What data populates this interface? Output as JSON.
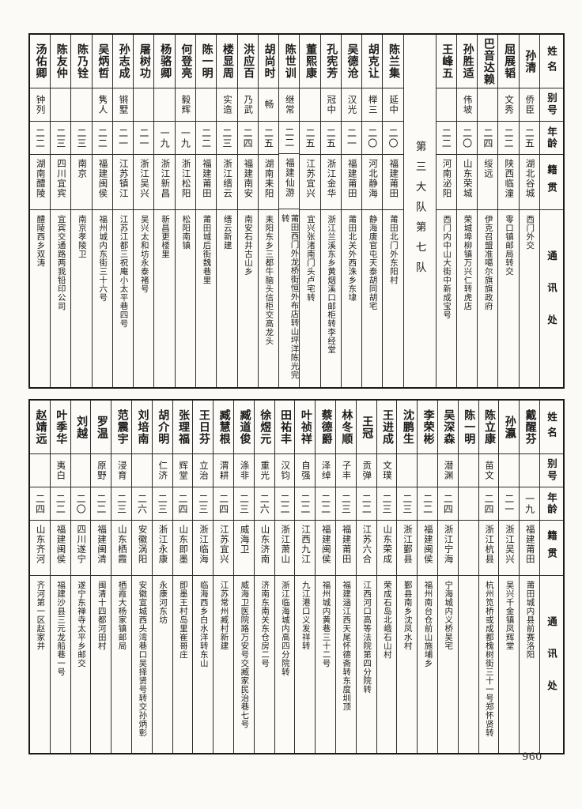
{
  "page": {
    "number": "960"
  },
  "header_labels": {
    "name": "姓名",
    "alias": "别号",
    "age": "年龄",
    "native": "籍贯",
    "contact": "通讯处"
  },
  "top_table": {
    "divider": "第三大队第七队",
    "people_right": [
      {
        "name": "孙清",
        "alias": "侨臣",
        "age": "二五",
        "native": "湖北谷城",
        "address": "西门外交"
      },
      {
        "name": "屈展韬",
        "alias": "文秀",
        "age": "二二",
        "native": "陕西临潼",
        "address": "零口镇邮局转交"
      },
      {
        "name": "巴音达赖",
        "alias": "",
        "age": "二四",
        "native": "绥远",
        "address": "伊克召盟准噶尔旗旗政府"
      },
      {
        "name": "孙胜适",
        "alias": "伟坡",
        "age": "二〇",
        "native": "山东荣城",
        "address": "荣城埠柳镇万兴仁转虎店"
      },
      {
        "name": "王峰五",
        "alias": "",
        "age": "二二",
        "native": "河南泌阳",
        "address": "西门内中山大街中新成宝号"
      }
    ],
    "people_left": [
      {
        "name": "陈兰集",
        "alias": "延中",
        "age": "二〇",
        "native": "福建莆田",
        "address": "莆田北门外东阳村"
      },
      {
        "name": "胡克让",
        "alias": "榉三",
        "age": "二〇",
        "native": "河北静海",
        "address": "静海唐官屯天泰胡同胡宅"
      },
      {
        "name": "吴德沧",
        "alias": "汉光",
        "age": "二一",
        "native": "福建莆田",
        "address": "莆田北关外西洙乡东埭"
      },
      {
        "name": "孔宪芳",
        "alias": "冠中",
        "age": "二五",
        "native": "浙江金华",
        "address": "浙江兰溪东乡黄烟溪口邮柜转李经堂"
      },
      {
        "name": "董熙康",
        "alias": "",
        "age": "二五",
        "native": "江苏宜兴",
        "address": "宜兴张渚南门头卢宅转"
      },
      {
        "name": "陈世训",
        "alias": "继常",
        "age": "二二",
        "native": "福建仙游",
        "address": "莆田西门外龙桥街恒外布店转山坪洋陈光完转"
      },
      {
        "name": "胡尚时",
        "alias": "畅",
        "age": "二五",
        "native": "湖南耒阳",
        "address": "耒阳东乡三都牛脑头信柜交高龙头"
      },
      {
        "name": "洪应百",
        "alias": "乃武",
        "age": "二四",
        "native": "福建南安",
        "address": "南安石井古山乡"
      },
      {
        "name": "楼显周",
        "alias": "实造",
        "age": "二三",
        "native": "浙江缙云",
        "address": "缙云新建"
      },
      {
        "name": "陈一明",
        "alias": "",
        "age": "二二",
        "native": "福建莆田",
        "address": "莆田城后街魏巷里"
      },
      {
        "name": "何登亮",
        "alias": "毅辉",
        "age": "一九",
        "native": "浙江松阳",
        "address": "松阳南镇"
      },
      {
        "name": "杨骆卿",
        "alias": "",
        "age": "一九",
        "native": "浙江新昌",
        "address": "新昌更楼里"
      },
      {
        "name": "屠树功",
        "alias": "",
        "age": "二一",
        "native": "浙江吴兴",
        "address": "吴兴太和坊永泰褚号"
      },
      {
        "name": "孙志成",
        "alias": "锵墅",
        "age": "二一",
        "native": "江苏镇江",
        "address": "江苏江都三祝庵小太平巷四号"
      },
      {
        "name": "吴炳哲",
        "alias": "隽人",
        "age": "二二",
        "native": "福建闽侯",
        "address": "福州城内东街三十六号"
      },
      {
        "name": "陈乃铨",
        "alias": "",
        "age": "二三",
        "native": "南京",
        "address": "南京孝陵卫"
      },
      {
        "name": "陈友仲",
        "alias": "",
        "age": "二三",
        "native": "四川宜宾",
        "address": "宜宾交通路两我铅印公司"
      },
      {
        "name": "汤佑卿",
        "alias": "钟列",
        "age": "二二",
        "native": "湖南醴陵",
        "address": "醴陵西乡双涛"
      }
    ]
  },
  "bottom_table": {
    "people": [
      {
        "name": "戴醒芬",
        "alias": "",
        "age": "一九",
        "native": "福建莆田",
        "address": "莆田城内县前赛洛阳"
      },
      {
        "name": "孙瀛",
        "alias": "",
        "age": "二一",
        "native": "浙江吴兴",
        "address": "吴兴千金镇凤辉堂"
      },
      {
        "name": "陈立康",
        "alias": "苗文",
        "age": "二四",
        "native": "浙江杭县",
        "address": "杭州笕桥或成都槐树街三十一号郑怀贤转"
      },
      {
        "name": "陈一明",
        "alias": "",
        "age": "",
        "native": "",
        "address": ""
      },
      {
        "name": "吴深森",
        "alias": "潜渊",
        "age": "二四",
        "native": "浙江宁海",
        "address": "宁海城内义桥吴宅"
      },
      {
        "name": "李荣彬",
        "alias": "",
        "age": "二二",
        "native": "福建闽侯",
        "address": "福州南台仓前山施埔乡"
      },
      {
        "name": "沈鹏生",
        "alias": "",
        "age": "二三",
        "native": "浙江鄞县",
        "address": "鄞县南乡沈凤水村"
      },
      {
        "name": "王进成",
        "alias": "文璞",
        "age": "二三",
        "native": "山东荣成",
        "address": "荣成石岛北峨石山村"
      },
      {
        "name": "王冠",
        "alias": "贡弹",
        "age": "二二",
        "native": "江苏六合",
        "address": "江西河口高等法院第四分院转"
      },
      {
        "name": "林冬顺",
        "alias": "子丰",
        "age": "二三",
        "native": "福建莆田",
        "address": "福建涵江西天尾怀德斋转东度圳顶"
      },
      {
        "name": "蔡德爵",
        "alias": "泽绰",
        "age": "二二",
        "native": "福建闽侯",
        "address": "福州城内黄巷三十二号"
      },
      {
        "name": "叶祯祥",
        "alias": "自强",
        "age": "二二",
        "native": "江西九江",
        "address": "九江港口义发祥转"
      },
      {
        "name": "田祐丰",
        "alias": "汉钧",
        "age": "二二",
        "native": "浙江萧山",
        "address": "浙江临海城内高四分院转"
      },
      {
        "name": "徐煜元",
        "alias": "重光",
        "age": "二六",
        "native": "山东济南",
        "address": "济南东南关东仓房二号"
      },
      {
        "name": "臧道俊",
        "alias": "涤非",
        "age": "二三",
        "native": "威海卫",
        "address": "威海卫医院路万安号交臧家民治巷七号"
      },
      {
        "name": "臧慧根",
        "alias": "渭耕",
        "age": "二四",
        "native": "江苏宜兴",
        "address": "江苏常州臧村新建"
      },
      {
        "name": "王日芬",
        "alias": "立治",
        "age": "二三",
        "native": "浙江临海",
        "address": "临海西乡白水洋转东山"
      },
      {
        "name": "张理福",
        "alias": "辉堂",
        "age": "二四",
        "native": "山东即墨",
        "address": "即墨王村岛里崔哥庄"
      },
      {
        "name": "胡介明",
        "alias": "仁济",
        "age": "二三",
        "native": "浙江永康",
        "address": "永康河东坊"
      },
      {
        "name": "刘培南",
        "alias": "",
        "age": "二六",
        "native": "安徽涡阳",
        "address": "安徽宣城西头湾巷口吴择贤号转交孙炳彰"
      },
      {
        "name": "范震宇",
        "alias": "浸育",
        "age": "二三",
        "native": "山东栖霞",
        "address": "栖霞大杨家镇邮局"
      },
      {
        "name": "罗温",
        "alias": "原野",
        "age": "二二",
        "native": "福建闽清",
        "address": "闽清十四都河田村"
      },
      {
        "name": "刘越",
        "alias": "",
        "age": "二〇",
        "native": "四川遂宁",
        "address": "遂宁东禅寺太平乡邮交"
      },
      {
        "name": "叶季华",
        "alias": "夷白",
        "age": "二二",
        "native": "福建闽侯",
        "address": "福建沙县三元龙船巷一号"
      },
      {
        "name": "赵靖远",
        "alias": "",
        "age": "二四",
        "native": "山东齐河",
        "address": "齐河第一区赵家井"
      }
    ]
  }
}
